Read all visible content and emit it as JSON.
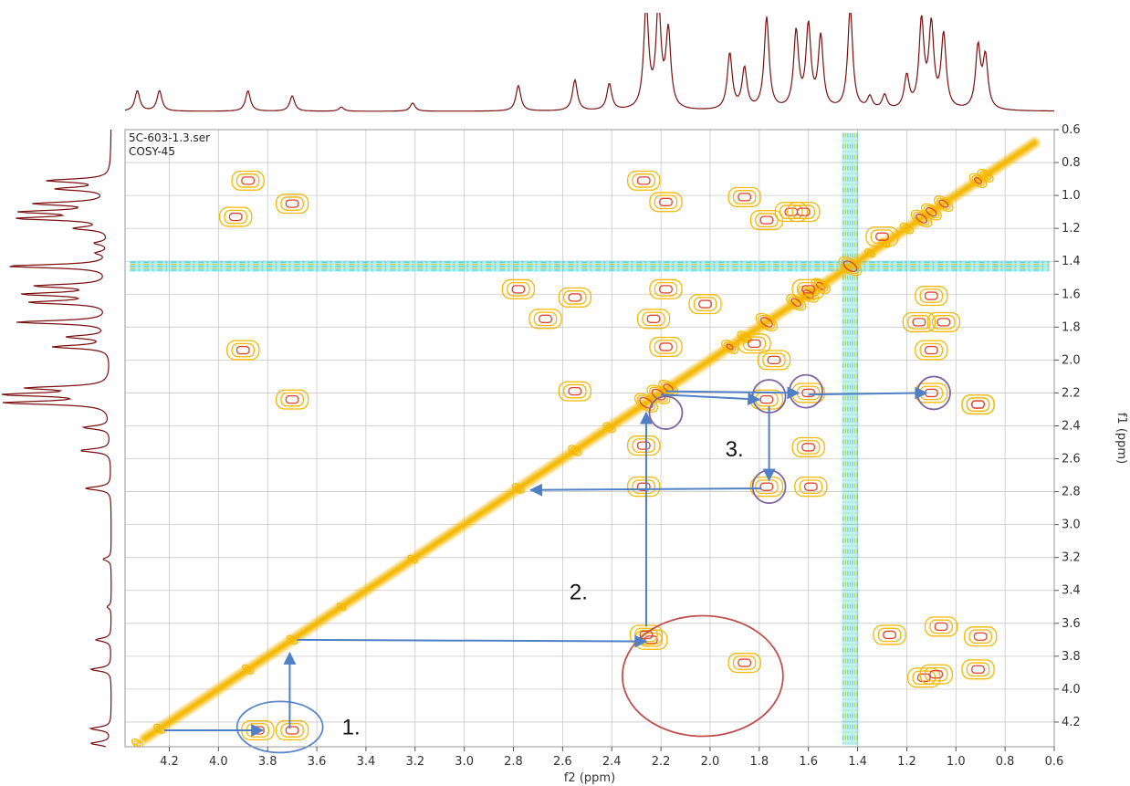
{
  "chart_data": {
    "type": "heatmap",
    "subtype": "2D COSY NMR contour plot",
    "title": "",
    "info_lines": [
      "5C-603-1.3.ser",
      "COSY-45"
    ],
    "xlabel": "f2 (ppm)",
    "ylabel": "f1 (ppm)",
    "x_axis": {
      "reversed": true,
      "range": [
        4.38,
        0.6
      ],
      "ticks": [
        "4.2",
        "4.0",
        "3.8",
        "3.6",
        "3.4",
        "3.2",
        "3.0",
        "2.8",
        "2.6",
        "2.4",
        "2.2",
        "2.0",
        "1.8",
        "1.6",
        "1.4",
        "1.2",
        "1.0",
        "0.8",
        "0.6"
      ]
    },
    "y_axis": {
      "position": "right",
      "range": [
        0.6,
        4.35
      ],
      "ticks": [
        "0.6",
        "0.8",
        "1.0",
        "1.2",
        "1.4",
        "1.6",
        "1.8",
        "2.0",
        "2.2",
        "2.4",
        "2.6",
        "2.8",
        "3.0",
        "3.2",
        "3.4",
        "3.6",
        "3.8",
        "4.0",
        "4.2"
      ]
    },
    "grid": true,
    "colors": {
      "positive": "#f5b800",
      "negative": "#22d3dd",
      "core": "#e0442a",
      "projection": "#7a1010",
      "arrow": "#4f7fc4",
      "grid": "#c8c8c8",
      "circle_blue": "#5b86c9",
      "circle_red": "#c0504d",
      "circle_purple": "#8064a2"
    },
    "diagonal": {
      "from": [
        4.3,
        4.3
      ],
      "to": [
        0.68,
        0.68
      ]
    },
    "noise_streaks": [
      {
        "orientation": "horizontal",
        "f1": 1.43,
        "f2_from": 4.36,
        "f2_to": 0.62
      },
      {
        "orientation": "vertical",
        "f2": 1.43,
        "f1_from": 0.62,
        "f1_to": 4.34
      }
    ],
    "cross_peaks": [
      {
        "x": 3.88,
        "y": 0.91
      },
      {
        "x": 0.91,
        "y": 3.88
      },
      {
        "x": 3.93,
        "y": 1.13
      },
      {
        "x": 1.13,
        "y": 3.93
      },
      {
        "x": 3.7,
        "y": 1.05
      },
      {
        "x": 3.9,
        "y": 1.94
      },
      {
        "x": 3.7,
        "y": 2.24
      },
      {
        "x": 2.24,
        "y": 3.7
      },
      {
        "x": 2.27,
        "y": 0.91
      },
      {
        "x": 0.91,
        "y": 2.27
      },
      {
        "x": 2.18,
        "y": 1.04
      },
      {
        "x": 2.18,
        "y": 1.57
      },
      {
        "x": 2.23,
        "y": 1.75
      },
      {
        "x": 2.18,
        "y": 1.92
      },
      {
        "x": 2.27,
        "y": 2.52
      },
      {
        "x": 2.27,
        "y": 2.77
      },
      {
        "x": 2.78,
        "y": 1.57
      },
      {
        "x": 2.67,
        "y": 1.75
      },
      {
        "x": 2.55,
        "y": 1.62
      },
      {
        "x": 2.55,
        "y": 2.19
      },
      {
        "x": 2.02,
        "y": 1.66
      },
      {
        "x": 1.77,
        "y": 1.15
      },
      {
        "x": 1.77,
        "y": 2.24
      },
      {
        "x": 1.77,
        "y": 2.77
      },
      {
        "x": 1.67,
        "y": 1.1
      },
      {
        "x": 1.62,
        "y": 1.1
      },
      {
        "x": 1.6,
        "y": 1.57
      },
      {
        "x": 1.6,
        "y": 2.2
      },
      {
        "x": 1.59,
        "y": 2.77
      },
      {
        "x": 1.6,
        "y": 2.53
      },
      {
        "x": 1.86,
        "y": 1.01
      },
      {
        "x": 1.15,
        "y": 1.77
      },
      {
        "x": 1.1,
        "y": 1.61
      },
      {
        "x": 1.05,
        "y": 1.77
      },
      {
        "x": 1.1,
        "y": 1.94
      },
      {
        "x": 1.1,
        "y": 2.2
      },
      {
        "x": 0.91,
        "y": 2.27
      },
      {
        "x": 1.3,
        "y": 1.25
      },
      {
        "x": 1.08,
        "y": 3.91
      },
      {
        "x": 0.9,
        "y": 3.68
      },
      {
        "x": 1.06,
        "y": 3.62
      },
      {
        "x": 1.27,
        "y": 3.67
      },
      {
        "x": 1.86,
        "y": 3.84
      },
      {
        "x": 2.26,
        "y": 3.67
      },
      {
        "x": 3.84,
        "y": 4.25
      },
      {
        "x": 3.7,
        "y": 4.25
      },
      {
        "x": 1.82,
        "y": 1.9
      },
      {
        "x": 1.74,
        "y": 2.0
      }
    ],
    "annotations": [
      {
        "label": "1.",
        "shape": "ellipse",
        "color": "circle_blue",
        "center": [
          3.75,
          4.23
        ]
      },
      {
        "label": "2.",
        "shape": "ellipse",
        "color": "circle_red",
        "center": [
          2.03,
          3.92
        ]
      },
      {
        "label": "3.",
        "shape": "circles",
        "color": "circle_purple",
        "circles": [
          [
            2.18,
            2.32
          ],
          [
            1.76,
            2.22
          ],
          [
            1.61,
            2.19
          ],
          [
            1.09,
            2.2
          ],
          [
            1.76,
            2.77
          ]
        ]
      }
    ],
    "arrows": [
      {
        "from": [
          4.22,
          4.25
        ],
        "to": [
          3.82,
          4.25
        ]
      },
      {
        "from": [
          3.71,
          4.24
        ],
        "to": [
          3.71,
          3.78
        ]
      },
      {
        "from": [
          3.68,
          3.7
        ],
        "to": [
          2.26,
          3.71
        ]
      },
      {
        "from": [
          2.26,
          3.62
        ],
        "to": [
          2.26,
          2.32
        ]
      },
      {
        "from": [
          2.2,
          2.21
        ],
        "to": [
          1.8,
          2.24
        ]
      },
      {
        "from": [
          2.18,
          2.19
        ],
        "to": [
          1.64,
          2.2
        ]
      },
      {
        "from": [
          1.6,
          2.21
        ],
        "to": [
          1.12,
          2.2
        ]
      },
      {
        "from": [
          1.76,
          2.28
        ],
        "to": [
          1.76,
          2.73
        ]
      },
      {
        "from": [
          1.79,
          2.78
        ],
        "to": [
          2.73,
          2.79
        ]
      }
    ],
    "projection_f2": [
      {
        "x": 4.33,
        "h": 0.2
      },
      {
        "x": 4.24,
        "h": 0.2
      },
      {
        "x": 3.88,
        "h": 0.2
      },
      {
        "x": 3.7,
        "h": 0.15
      },
      {
        "x": 3.5,
        "h": 0.04
      },
      {
        "x": 3.21,
        "h": 0.08
      },
      {
        "x": 2.78,
        "h": 0.25
      },
      {
        "x": 2.55,
        "h": 0.3
      },
      {
        "x": 2.41,
        "h": 0.26
      },
      {
        "x": 2.26,
        "h": 1.0
      },
      {
        "x": 2.21,
        "h": 1.0
      },
      {
        "x": 2.17,
        "h": 0.75
      },
      {
        "x": 1.92,
        "h": 0.55
      },
      {
        "x": 1.86,
        "h": 0.4
      },
      {
        "x": 1.77,
        "h": 0.9
      },
      {
        "x": 1.65,
        "h": 0.75
      },
      {
        "x": 1.6,
        "h": 0.8
      },
      {
        "x": 1.55,
        "h": 0.7
      },
      {
        "x": 1.43,
        "h": 1.0
      },
      {
        "x": 1.35,
        "h": 0.12
      },
      {
        "x": 1.29,
        "h": 0.14
      },
      {
        "x": 1.2,
        "h": 0.32
      },
      {
        "x": 1.14,
        "h": 0.85
      },
      {
        "x": 1.1,
        "h": 0.8
      },
      {
        "x": 1.05,
        "h": 0.72
      },
      {
        "x": 0.91,
        "h": 0.6
      },
      {
        "x": 0.88,
        "h": 0.5
      }
    ],
    "projection_f1": [
      {
        "y": 0.91,
        "h": 0.6
      },
      {
        "y": 0.96,
        "h": 0.5
      },
      {
        "y": 1.05,
        "h": 0.7
      },
      {
        "y": 1.1,
        "h": 0.8
      },
      {
        "y": 1.14,
        "h": 0.85
      },
      {
        "y": 1.2,
        "h": 0.32
      },
      {
        "y": 1.29,
        "h": 0.14
      },
      {
        "y": 1.35,
        "h": 0.12
      },
      {
        "y": 1.43,
        "h": 1.0
      },
      {
        "y": 1.55,
        "h": 0.7
      },
      {
        "y": 1.6,
        "h": 0.8
      },
      {
        "y": 1.65,
        "h": 0.75
      },
      {
        "y": 1.77,
        "h": 0.9
      },
      {
        "y": 1.86,
        "h": 0.4
      },
      {
        "y": 1.92,
        "h": 0.55
      },
      {
        "y": 2.17,
        "h": 0.75
      },
      {
        "y": 2.21,
        "h": 1.0
      },
      {
        "y": 2.26,
        "h": 1.0
      },
      {
        "y": 2.41,
        "h": 0.26
      },
      {
        "y": 2.55,
        "h": 0.3
      },
      {
        "y": 2.78,
        "h": 0.25
      },
      {
        "y": 3.21,
        "h": 0.08
      },
      {
        "y": 3.5,
        "h": 0.04
      },
      {
        "y": 3.7,
        "h": 0.15
      },
      {
        "y": 3.88,
        "h": 0.2
      },
      {
        "y": 4.24,
        "h": 0.2
      },
      {
        "y": 4.33,
        "h": 0.2
      }
    ]
  }
}
